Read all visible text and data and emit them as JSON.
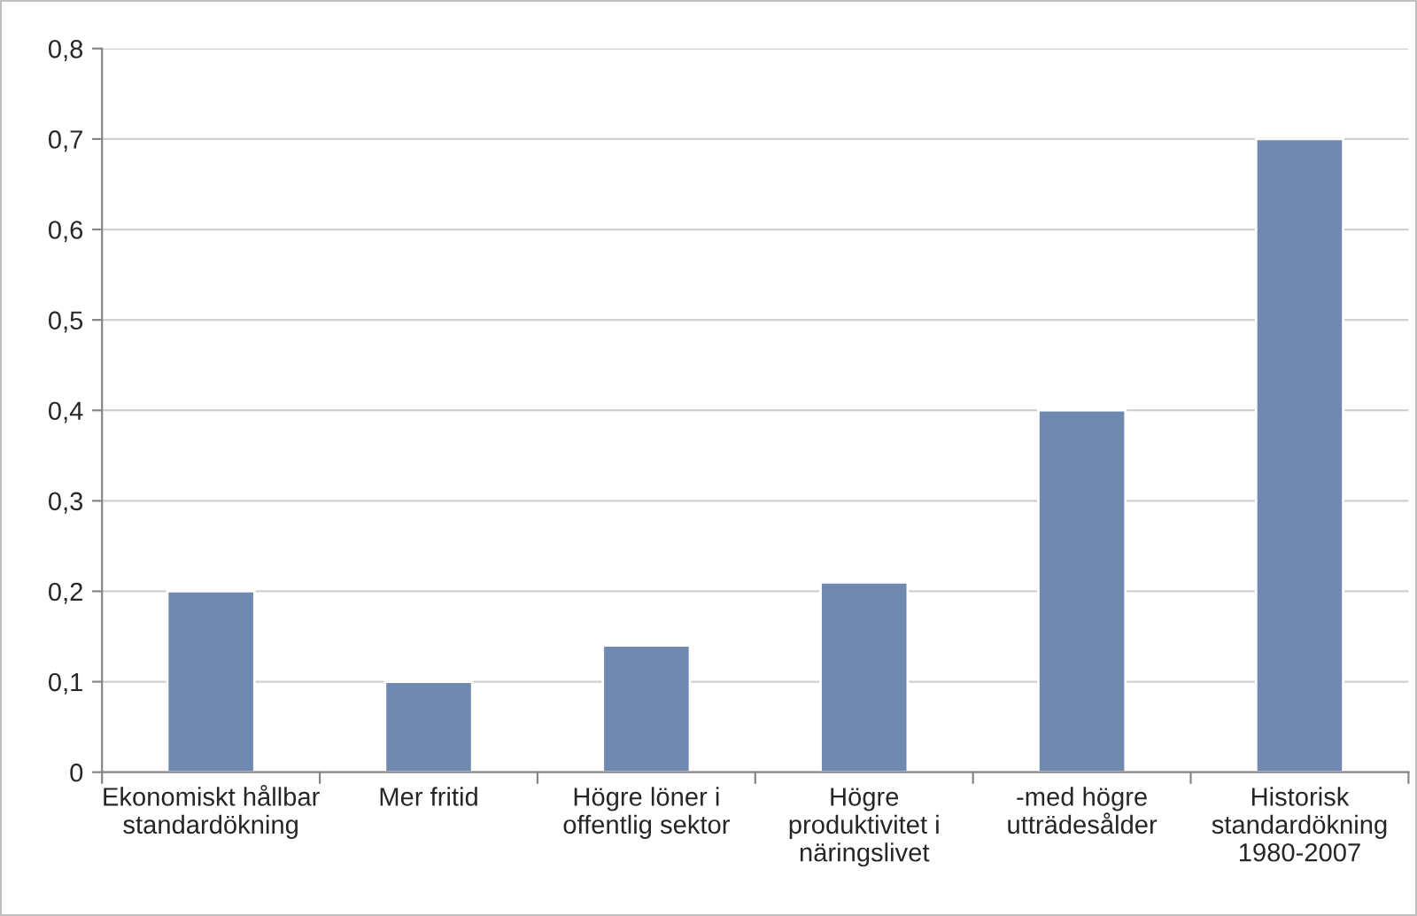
{
  "chart_data": {
    "type": "bar",
    "categories": [
      "Ekonomiskt hållbar standardökning",
      "Mer fritid",
      "Högre löner i offentlig sektor",
      "Högre produktivitet i näringslivet",
      "-med högre utträdesålder",
      "Historisk standardökning 1980-2007"
    ],
    "values": [
      0.2,
      0.1,
      0.14,
      0.21,
      0.4,
      0.7
    ],
    "color": "#7089b0",
    "ylim": [
      0,
      0.8
    ],
    "yticks": [
      0,
      {
        "value": 0.1,
        "label": "0,1"
      },
      {
        "value": 0.2,
        "label": "0,2"
      },
      {
        "value": 0.3,
        "label": "0,3"
      },
      {
        "value": 0.4,
        "label": "0,4"
      },
      {
        "value": 0.5,
        "label": "0,5"
      },
      {
        "value": 0.6,
        "label": "0,6"
      },
      {
        "value": 0.7,
        "label": "0,7"
      },
      {
        "value": 0.8,
        "label": "0,8"
      }
    ],
    "grid": "y"
  }
}
